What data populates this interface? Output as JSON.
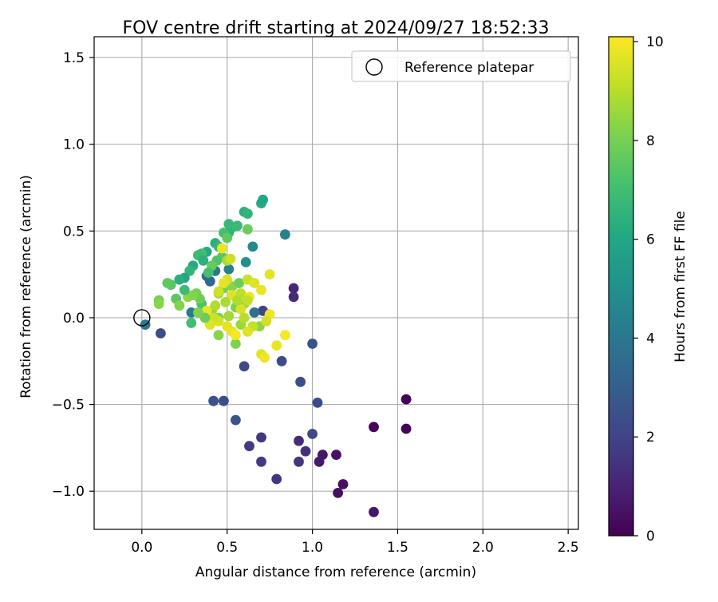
{
  "chart_data": {
    "type": "scatter",
    "title": "FOV centre drift starting at 2024/09/27 18:52:33",
    "xlabel": "Angular distance from reference (arcmin)",
    "ylabel": "Rotation from reference (arcmin)",
    "xlim": [
      -0.28,
      2.56
    ],
    "ylim": [
      -1.22,
      1.62
    ],
    "xticks": [
      0.0,
      0.5,
      1.0,
      1.5,
      2.0,
      2.5
    ],
    "xtick_labels": [
      "0.0",
      "0.5",
      "1.0",
      "1.5",
      "2.0",
      "2.5"
    ],
    "yticks": [
      -1.0,
      -0.5,
      0.0,
      0.5,
      1.0,
      1.5
    ],
    "ytick_labels": [
      "−1.0",
      "−0.5",
      "0.0",
      "0.5",
      "1.0",
      "1.5"
    ],
    "grid": true,
    "legend": {
      "position": "top-right",
      "entries": [
        "Reference platepar"
      ]
    },
    "reference_point": {
      "x": 0.0,
      "y": 0.0
    },
    "colorbar": {
      "label": "Hours from first FF file",
      "colormap": "viridis",
      "range": [
        0,
        10.1
      ],
      "ticks": [
        0,
        2,
        4,
        6,
        8,
        10
      ],
      "tick_labels": [
        "0",
        "2",
        "4",
        "6",
        "8",
        "10"
      ]
    },
    "points": [
      {
        "x": 1.36,
        "y": -0.63,
        "c": 0.1
      },
      {
        "x": 1.55,
        "y": -0.47,
        "c": 0.1
      },
      {
        "x": 1.55,
        "y": -0.64,
        "c": 0.1
      },
      {
        "x": 1.36,
        "y": -1.12,
        "c": 0.6
      },
      {
        "x": 1.18,
        "y": -0.96,
        "c": 0.4
      },
      {
        "x": 1.15,
        "y": -1.01,
        "c": 0.4
      },
      {
        "x": 1.14,
        "y": -0.79,
        "c": 0.5
      },
      {
        "x": 1.06,
        "y": -0.79,
        "c": 0.6
      },
      {
        "x": 1.04,
        "y": -0.83,
        "c": 0.7
      },
      {
        "x": 0.92,
        "y": -0.71,
        "c": 1.2
      },
      {
        "x": 0.96,
        "y": -0.77,
        "c": 1.4
      },
      {
        "x": 0.92,
        "y": -0.83,
        "c": 1.6
      },
      {
        "x": 0.89,
        "y": 0.17,
        "c": 1.1
      },
      {
        "x": 0.89,
        "y": 0.12,
        "c": 1.2
      },
      {
        "x": 0.79,
        "y": -0.93,
        "c": 1.5
      },
      {
        "x": 0.7,
        "y": -0.69,
        "c": 1.6
      },
      {
        "x": 0.7,
        "y": -0.83,
        "c": 1.7
      },
      {
        "x": 0.63,
        "y": -0.74,
        "c": 1.7
      },
      {
        "x": 1.0,
        "y": -0.67,
        "c": 2.2
      },
      {
        "x": 1.03,
        "y": -0.49,
        "c": 2.3
      },
      {
        "x": 0.93,
        "y": -0.37,
        "c": 2.4
      },
      {
        "x": 1.0,
        "y": -0.15,
        "c": 2.5
      },
      {
        "x": 0.82,
        "y": -0.25,
        "c": 2.3
      },
      {
        "x": 0.6,
        "y": -0.28,
        "c": 2.2
      },
      {
        "x": 0.55,
        "y": -0.59,
        "c": 2.6
      },
      {
        "x": 0.48,
        "y": -0.48,
        "c": 2.4
      },
      {
        "x": 0.42,
        "y": -0.48,
        "c": 2.5
      },
      {
        "x": 0.11,
        "y": -0.09,
        "c": 2.4
      },
      {
        "x": 0.71,
        "y": 0.04,
        "c": 2.0
      },
      {
        "x": 0.02,
        "y": -0.04,
        "c": 4.0
      },
      {
        "x": 0.84,
        "y": 0.48,
        "c": 4.5
      },
      {
        "x": 0.65,
        "y": 0.41,
        "c": 4.8
      },
      {
        "x": 0.61,
        "y": 0.32,
        "c": 5.0
      },
      {
        "x": 0.4,
        "y": 0.21,
        "c": 3.4
      },
      {
        "x": 0.38,
        "y": 0.24,
        "c": 3.6
      },
      {
        "x": 0.43,
        "y": 0.27,
        "c": 4.0
      },
      {
        "x": 0.66,
        "y": 0.03,
        "c": 3.8
      },
      {
        "x": 0.29,
        "y": 0.03,
        "c": 4.2
      },
      {
        "x": 0.51,
        "y": 0.28,
        "c": 4.4
      },
      {
        "x": 0.7,
        "y": 0.66,
        "c": 6.2
      },
      {
        "x": 0.71,
        "y": 0.68,
        "c": 6.0
      },
      {
        "x": 0.6,
        "y": 0.61,
        "c": 6.4
      },
      {
        "x": 0.62,
        "y": 0.6,
        "c": 6.6
      },
      {
        "x": 0.56,
        "y": 0.53,
        "c": 6.8
      },
      {
        "x": 0.53,
        "y": 0.52,
        "c": 6.9
      },
      {
        "x": 0.51,
        "y": 0.49,
        "c": 6.5
      },
      {
        "x": 0.51,
        "y": 0.54,
        "c": 6.7
      },
      {
        "x": 0.48,
        "y": 0.49,
        "c": 7.1
      },
      {
        "x": 0.43,
        "y": 0.43,
        "c": 6.3
      },
      {
        "x": 0.45,
        "y": 0.41,
        "c": 6.6
      },
      {
        "x": 0.38,
        "y": 0.38,
        "c": 6.1
      },
      {
        "x": 0.35,
        "y": 0.37,
        "c": 7.0
      },
      {
        "x": 0.33,
        "y": 0.36,
        "c": 6.8
      },
      {
        "x": 0.36,
        "y": 0.33,
        "c": 6.4
      },
      {
        "x": 0.3,
        "y": 0.3,
        "c": 6.2
      },
      {
        "x": 0.28,
        "y": 0.27,
        "c": 6.6
      },
      {
        "x": 0.25,
        "y": 0.23,
        "c": 6.0
      },
      {
        "x": 0.22,
        "y": 0.22,
        "c": 6.3
      },
      {
        "x": 0.17,
        "y": 0.19,
        "c": 7.4
      },
      {
        "x": 0.15,
        "y": 0.2,
        "c": 7.6
      },
      {
        "x": 0.2,
        "y": 0.11,
        "c": 7.5
      },
      {
        "x": 0.22,
        "y": 0.07,
        "c": 8.2
      },
      {
        "x": 0.1,
        "y": 0.1,
        "c": 8.0
      },
      {
        "x": 0.1,
        "y": 0.08,
        "c": 8.3
      },
      {
        "x": 0.29,
        "y": -0.03,
        "c": 7.0
      },
      {
        "x": 0.35,
        "y": 0.08,
        "c": 7.2
      },
      {
        "x": 0.47,
        "y": 0.35,
        "c": 7.5
      },
      {
        "x": 0.44,
        "y": 0.33,
        "c": 7.3
      },
      {
        "x": 0.41,
        "y": 0.3,
        "c": 7.7
      },
      {
        "x": 0.62,
        "y": 0.51,
        "c": 7.8
      },
      {
        "x": 0.5,
        "y": 0.46,
        "c": 7.6
      },
      {
        "x": 0.39,
        "y": 0.26,
        "c": 7.1
      },
      {
        "x": 0.32,
        "y": 0.14,
        "c": 8.0
      },
      {
        "x": 0.27,
        "y": 0.12,
        "c": 8.4
      },
      {
        "x": 0.34,
        "y": 0.11,
        "c": 7.9
      },
      {
        "x": 0.3,
        "y": 0.13,
        "c": 8.2
      },
      {
        "x": 0.45,
        "y": 0.14,
        "c": 8.5
      },
      {
        "x": 0.48,
        "y": 0.17,
        "c": 8.0
      },
      {
        "x": 0.53,
        "y": 0.18,
        "c": 8.3
      },
      {
        "x": 0.57,
        "y": 0.2,
        "c": 7.8
      },
      {
        "x": 0.41,
        "y": 0.04,
        "c": 8.4
      },
      {
        "x": 0.45,
        "y": 0.0,
        "c": 8.2
      },
      {
        "x": 0.51,
        "y": 0.01,
        "c": 8.7
      },
      {
        "x": 0.55,
        "y": 0.06,
        "c": 8.1
      },
      {
        "x": 0.58,
        "y": -0.04,
        "c": 8.6
      },
      {
        "x": 0.45,
        "y": -0.1,
        "c": 8.3
      },
      {
        "x": 0.55,
        "y": -0.15,
        "c": 8.1
      },
      {
        "x": 0.69,
        "y": -0.05,
        "c": 8.4
      },
      {
        "x": 0.6,
        "y": 0.08,
        "c": 8.6
      },
      {
        "x": 0.5,
        "y": 0.33,
        "c": 8.8
      },
      {
        "x": 0.52,
        "y": 0.34,
        "c": 9.3
      },
      {
        "x": 0.47,
        "y": 0.4,
        "c": 9.8
      },
      {
        "x": 0.5,
        "y": 0.22,
        "c": 9.5
      },
      {
        "x": 0.48,
        "y": 0.2,
        "c": 9.7
      },
      {
        "x": 0.45,
        "y": 0.15,
        "c": 9.4
      },
      {
        "x": 0.53,
        "y": 0.13,
        "c": 9.6
      },
      {
        "x": 0.58,
        "y": 0.14,
        "c": 9.1
      },
      {
        "x": 0.62,
        "y": 0.22,
        "c": 9.3
      },
      {
        "x": 0.66,
        "y": 0.2,
        "c": 9.6
      },
      {
        "x": 0.63,
        "y": 0.12,
        "c": 9.9
      },
      {
        "x": 0.62,
        "y": 0.1,
        "c": 9.2
      },
      {
        "x": 0.58,
        "y": 0.05,
        "c": 9.5
      },
      {
        "x": 0.7,
        "y": 0.16,
        "c": 9.8
      },
      {
        "x": 0.75,
        "y": 0.25,
        "c": 9.7
      },
      {
        "x": 0.75,
        "y": 0.02,
        "c": 9.9
      },
      {
        "x": 0.73,
        "y": -0.02,
        "c": 9.4
      },
      {
        "x": 0.65,
        "y": -0.05,
        "c": 9.2
      },
      {
        "x": 0.62,
        "y": -0.08,
        "c": 9.6
      },
      {
        "x": 0.53,
        "y": -0.08,
        "c": 9.8
      },
      {
        "x": 0.55,
        "y": -0.1,
        "c": 10.0
      },
      {
        "x": 0.5,
        "y": -0.05,
        "c": 9.7
      },
      {
        "x": 0.45,
        "y": -0.02,
        "c": 9.5
      },
      {
        "x": 0.42,
        "y": 0.0,
        "c": 9.3
      },
      {
        "x": 0.38,
        "y": 0.04,
        "c": 9.8
      },
      {
        "x": 0.4,
        "y": -0.04,
        "c": 9.6
      },
      {
        "x": 0.7,
        "y": -0.21,
        "c": 9.7
      },
      {
        "x": 0.72,
        "y": -0.23,
        "c": 9.9
      },
      {
        "x": 0.79,
        "y": -0.16,
        "c": 9.8
      },
      {
        "x": 0.84,
        "y": -0.1,
        "c": 10.0
      },
      {
        "x": 0.6,
        "y": 0.0,
        "c": 9.0
      },
      {
        "x": 0.56,
        "y": 0.1,
        "c": 8.9
      },
      {
        "x": 0.49,
        "y": 0.09,
        "c": 8.8
      },
      {
        "x": 0.43,
        "y": 0.07,
        "c": 8.9
      },
      {
        "x": 0.37,
        "y": 0.0,
        "c": 7.8
      },
      {
        "x": 0.33,
        "y": 0.03,
        "c": 8.1
      },
      {
        "x": 0.25,
        "y": 0.16,
        "c": 6.9
      }
    ]
  }
}
